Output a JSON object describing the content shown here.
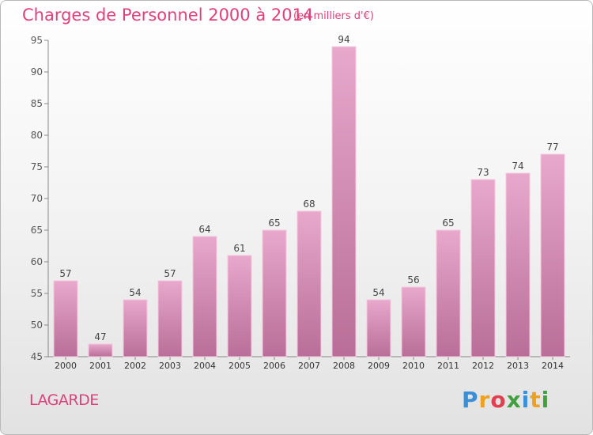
{
  "title": "Charges de Personnel 2000 à 2014",
  "subtitle": "(en milliers d'€)",
  "commune": "LAGARDE",
  "logo": {
    "letters": [
      "P",
      "r",
      "o",
      "x",
      "i",
      "t",
      "i"
    ],
    "colors": [
      "#3a8fd8",
      "#f0a020",
      "#e04050",
      "#40a040",
      "#3a8fd8",
      "#f0a020",
      "#40a040"
    ]
  },
  "colors": {
    "bar_top": "#e8a8cc",
    "bar_bottom": "#b86e98",
    "text": "#e0407a",
    "axis": "#666666"
  },
  "chart_data": {
    "type": "bar",
    "title": "Charges de Personnel 2000 à 2014",
    "subtitle": "(en milliers d'€)",
    "categories": [
      "2000",
      "2001",
      "2002",
      "2003",
      "2004",
      "2005",
      "2006",
      "2007",
      "2008",
      "2009",
      "2010",
      "2011",
      "2012",
      "2013",
      "2014"
    ],
    "values": [
      57,
      47,
      54,
      57,
      64,
      61,
      65,
      68,
      94,
      54,
      56,
      65,
      73,
      74,
      77
    ],
    "ylim": [
      45,
      95
    ],
    "yticks": [
      45,
      50,
      55,
      60,
      65,
      70,
      75,
      80,
      85,
      90,
      95
    ],
    "grid": false,
    "legend": "none"
  }
}
